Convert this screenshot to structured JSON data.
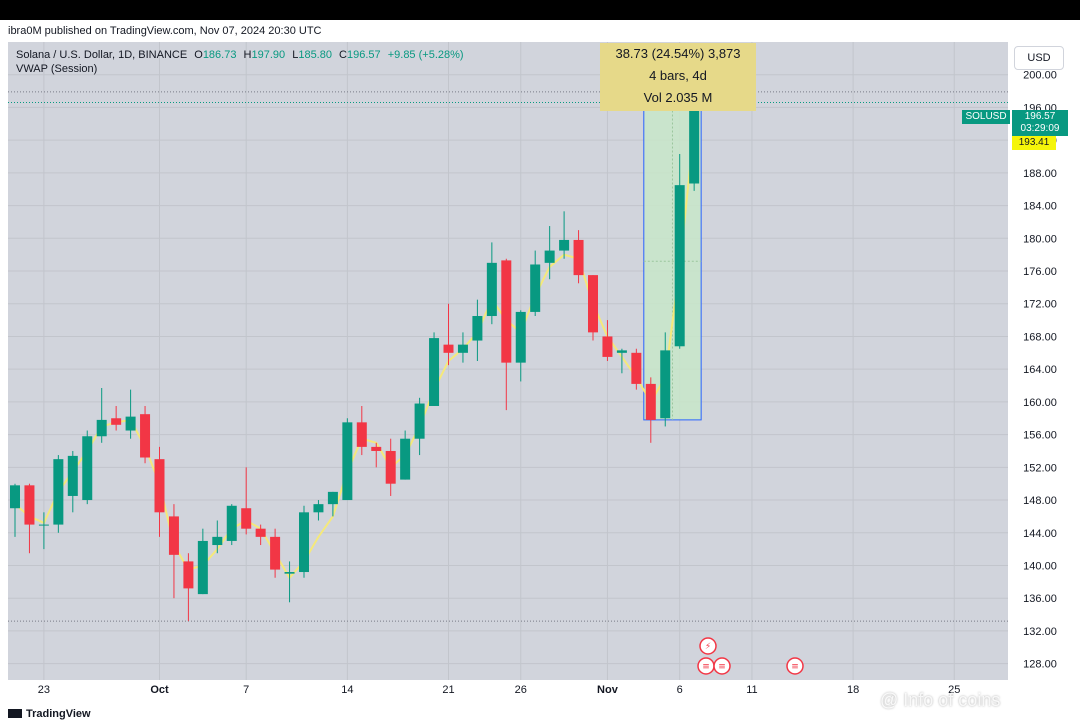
{
  "published": "ibra0M published on TradingView.com, Nov 07, 2024 20:30 UTC",
  "legend": {
    "symbol": "Solana / U.S. Dollar, 1D, BINANCE",
    "open_label": "O",
    "open": "186.73",
    "high_label": "H",
    "high": "197.90",
    "low_label": "L",
    "low": "185.80",
    "close_label": "C",
    "close": "196.57",
    "change": "+9.85 (+5.28%)",
    "vwap_label": "VWAP (Session)"
  },
  "currency_button": "USD",
  "price_tag": {
    "symbol": "SOLUSD",
    "price": "196.57",
    "countdown": "03:29:09"
  },
  "vwap_tag": "193.41",
  "measure": {
    "line1": "38.73 (24.54%) 3,873",
    "line2": "4 bars, 4d",
    "line3": "Vol 2.035 M"
  },
  "brand": "TradingView",
  "watermark": "@ Info of coins",
  "colors": {
    "up": "#089981",
    "down": "#f23645",
    "vwap": "#f5e97a",
    "background": "#d1d4dc",
    "measure_fill": "#c8e6c9",
    "measure_border": "#2962ff"
  },
  "chart_data": {
    "type": "candlestick",
    "symbol": "SOLUSD",
    "interval": "1D",
    "ylim": [
      126,
      204
    ],
    "y_ticks": [
      128,
      132,
      136,
      140,
      144,
      148,
      152,
      156,
      160,
      164,
      168,
      172,
      176,
      180,
      184,
      188,
      192,
      196,
      200
    ],
    "x_ticks": [
      {
        "label": "23",
        "index": 2
      },
      {
        "label": "Oct",
        "index": 10
      },
      {
        "label": "7",
        "index": 16
      },
      {
        "label": "14",
        "index": 23
      },
      {
        "label": "21",
        "index": 30
      },
      {
        "label": "26",
        "index": 35
      },
      {
        "label": "Nov",
        "index": 41
      },
      {
        "label": "6",
        "index": 46
      },
      {
        "label": "11",
        "index": 51
      },
      {
        "label": "18",
        "index": 58
      },
      {
        "label": "25",
        "index": 65
      }
    ],
    "candles": [
      {
        "o": 147.0,
        "h": 150.0,
        "l": 143.5,
        "c": 149.8
      },
      {
        "o": 149.8,
        "h": 150.0,
        "l": 141.5,
        "c": 145.0
      },
      {
        "o": 145.0,
        "h": 146.5,
        "l": 142.0,
        "c": 145.0
      },
      {
        "o": 145.0,
        "h": 153.5,
        "l": 144.0,
        "c": 153.0
      },
      {
        "o": 148.5,
        "h": 154.0,
        "l": 146.5,
        "c": 153.4
      },
      {
        "o": 148.0,
        "h": 156.5,
        "l": 147.5,
        "c": 155.8
      },
      {
        "o": 155.8,
        "h": 161.7,
        "l": 155.0,
        "c": 157.8
      },
      {
        "o": 158.0,
        "h": 159.5,
        "l": 156.5,
        "c": 157.2
      },
      {
        "o": 156.5,
        "h": 161.5,
        "l": 155.5,
        "c": 158.2
      },
      {
        "o": 158.5,
        "h": 159.5,
        "l": 152.5,
        "c": 153.2
      },
      {
        "o": 153.0,
        "h": 154.5,
        "l": 143.5,
        "c": 146.5
      },
      {
        "o": 146.0,
        "h": 147.5,
        "l": 136.0,
        "c": 141.3
      },
      {
        "o": 140.5,
        "h": 141.5,
        "l": 133.2,
        "c": 137.2
      },
      {
        "o": 136.5,
        "h": 144.5,
        "l": 136.5,
        "c": 143.0
      },
      {
        "o": 142.5,
        "h": 145.5,
        "l": 141.5,
        "c": 143.5
      },
      {
        "o": 143.0,
        "h": 147.5,
        "l": 142.5,
        "c": 147.3
      },
      {
        "o": 147.0,
        "h": 152.0,
        "l": 143.8,
        "c": 144.5
      },
      {
        "o": 144.5,
        "h": 145.0,
        "l": 142.5,
        "c": 143.5
      },
      {
        "o": 143.5,
        "h": 144.5,
        "l": 138.5,
        "c": 139.5
      },
      {
        "o": 139.0,
        "h": 140.5,
        "l": 135.5,
        "c": 139.2
      },
      {
        "o": 139.2,
        "h": 147.3,
        "l": 138.5,
        "c": 146.5
      },
      {
        "o": 146.5,
        "h": 148.0,
        "l": 145.5,
        "c": 147.5
      },
      {
        "o": 147.5,
        "h": 149.0,
        "l": 146.0,
        "c": 149.0
      },
      {
        "o": 148.0,
        "h": 158.0,
        "l": 148.0,
        "c": 157.5
      },
      {
        "o": 157.5,
        "h": 159.5,
        "l": 153.5,
        "c": 154.5
      },
      {
        "o": 154.5,
        "h": 155.0,
        "l": 152.0,
        "c": 154.0
      },
      {
        "o": 154.0,
        "h": 155.5,
        "l": 148.5,
        "c": 150.0
      },
      {
        "o": 150.5,
        "h": 156.5,
        "l": 150.5,
        "c": 155.5
      },
      {
        "o": 155.5,
        "h": 160.5,
        "l": 153.5,
        "c": 159.8
      },
      {
        "o": 159.5,
        "h": 168.5,
        "l": 159.5,
        "c": 167.8
      },
      {
        "o": 167.0,
        "h": 172.0,
        "l": 164.5,
        "c": 166.0
      },
      {
        "o": 166.0,
        "h": 168.5,
        "l": 164.8,
        "c": 167.0
      },
      {
        "o": 167.5,
        "h": 172.5,
        "l": 165.0,
        "c": 170.5
      },
      {
        "o": 170.5,
        "h": 179.5,
        "l": 169.5,
        "c": 177.0
      },
      {
        "o": 177.3,
        "h": 177.5,
        "l": 159.0,
        "c": 164.8
      },
      {
        "o": 164.8,
        "h": 171.2,
        "l": 162.5,
        "c": 171.0
      },
      {
        "o": 171.0,
        "h": 178.5,
        "l": 170.5,
        "c": 176.8
      },
      {
        "o": 177.0,
        "h": 181.5,
        "l": 175.0,
        "c": 178.5
      },
      {
        "o": 178.5,
        "h": 183.3,
        "l": 177.5,
        "c": 179.8
      },
      {
        "o": 179.8,
        "h": 181.0,
        "l": 174.5,
        "c": 175.5
      },
      {
        "o": 175.5,
        "h": 175.5,
        "l": 167.5,
        "c": 168.5
      },
      {
        "o": 168.0,
        "h": 170.0,
        "l": 165.0,
        "c": 165.5
      },
      {
        "o": 166.0,
        "h": 166.5,
        "l": 163.5,
        "c": 166.3
      },
      {
        "o": 166.0,
        "h": 166.5,
        "l": 161.5,
        "c": 162.2
      },
      {
        "o": 162.2,
        "h": 163.0,
        "l": 155.0,
        "c": 157.8
      },
      {
        "o": 158.0,
        "h": 168.5,
        "l": 157.0,
        "c": 166.3
      },
      {
        "o": 166.8,
        "h": 190.3,
        "l": 166.5,
        "c": 186.5
      },
      {
        "o": 186.7,
        "h": 197.9,
        "l": 185.8,
        "c": 196.6
      }
    ],
    "vwap": [
      147.5,
      146.0,
      145.2,
      149.0,
      151.5,
      154.0,
      157.0,
      157.5,
      157.8,
      154.5,
      150.0,
      142.5,
      139.5,
      140.0,
      142.0,
      144.5,
      145.5,
      144.5,
      141.5,
      138.5,
      140.5,
      143.5,
      146.0,
      151.5,
      155.5,
      155.0,
      152.0,
      153.5,
      157.0,
      161.5,
      165.0,
      166.5,
      168.5,
      172.5,
      170.0,
      168.5,
      173.0,
      176.5,
      178.0,
      177.5,
      172.0,
      168.0,
      165.5,
      163.0,
      160.0,
      163.0,
      176.5,
      193.4
    ]
  }
}
